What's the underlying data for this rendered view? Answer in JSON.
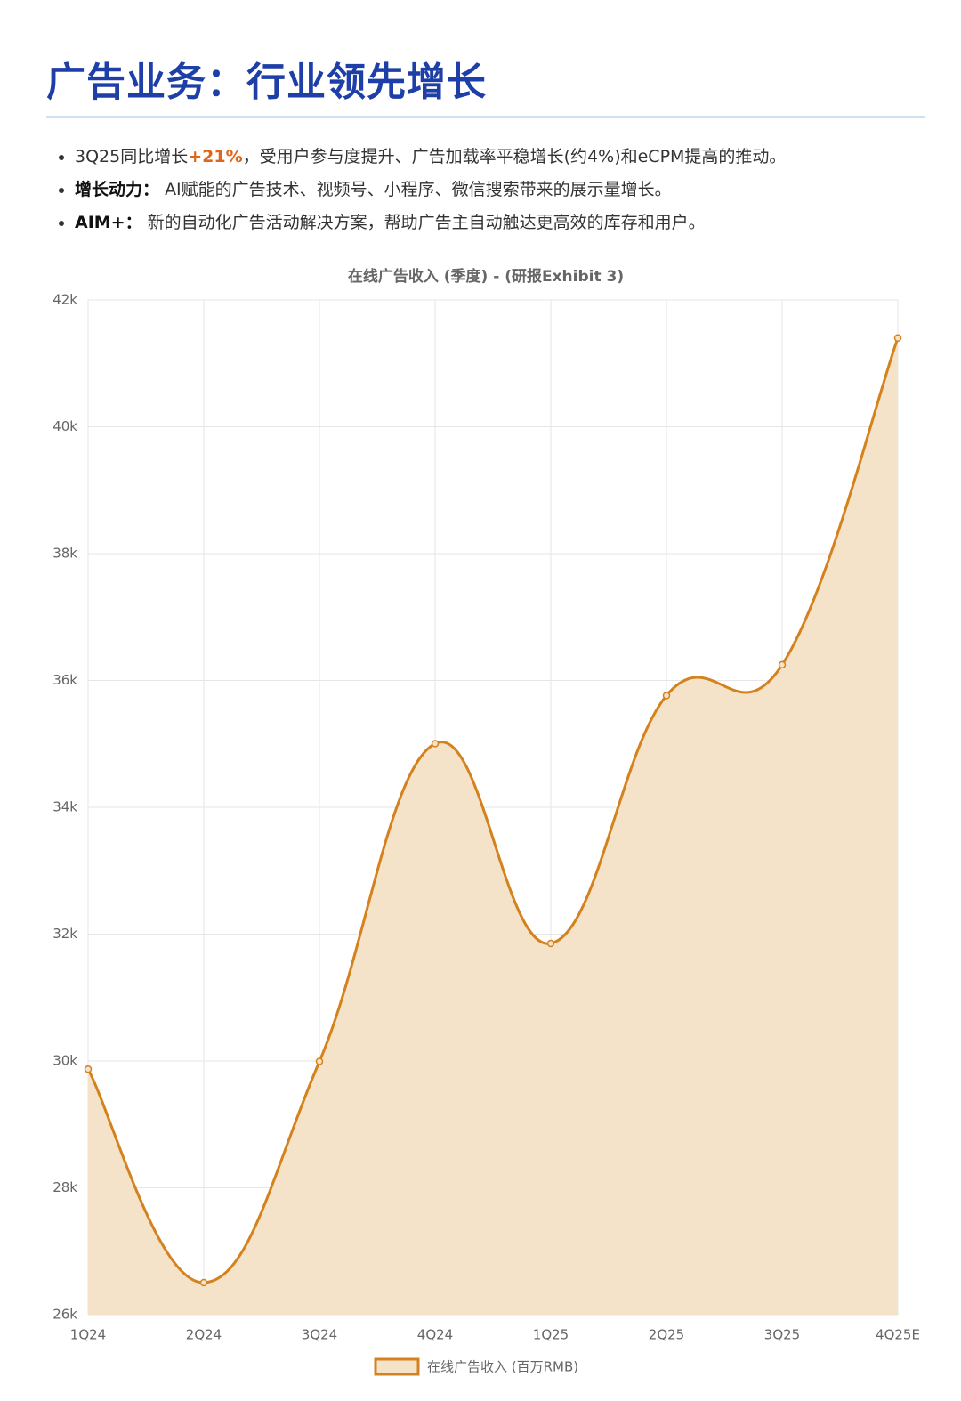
{
  "header": {
    "title": "广告业务：行业领先增长"
  },
  "bullets": [
    {
      "parts": [
        "3Q25同比增长",
        "+21%",
        "，受用户参与度提升、广告加载率平稳增长(约4%)和eCPM提高的推动。"
      ]
    },
    {
      "label": "增长动力：",
      "text": "AI赋能的广告技术、视频号、小程序、微信搜索带来的展示量增长。"
    },
    {
      "label": "AIM+：",
      "text": "新的自动化广告活动解决方案，帮助广告主自动触达更高效的库存和用户。"
    }
  ],
  "chart_data": {
    "type": "area",
    "title": "在线广告收入 (季度) - (研报Exhibit 3)",
    "categories": [
      "1Q24",
      "2Q24",
      "3Q24",
      "4Q24",
      "1Q25",
      "2Q25",
      "3Q25",
      "4Q25E"
    ],
    "series": [
      {
        "name": "在线广告收入 (百万RMB)",
        "color": "#d4821e",
        "fill": "#f5e3c9",
        "values": [
          29871,
          26506,
          29993,
          35004,
          31853,
          35762,
          36247,
          41400
        ]
      }
    ],
    "ylim": [
      26000,
      42000
    ],
    "yticks": [
      {
        "value": 26000,
        "label": "26k"
      },
      {
        "value": 28000,
        "label": "28k"
      },
      {
        "value": 30000,
        "label": "30k"
      },
      {
        "value": 32000,
        "label": "32k"
      },
      {
        "value": 34000,
        "label": "34k"
      },
      {
        "value": 36000,
        "label": "36k"
      },
      {
        "value": 38000,
        "label": "38k"
      },
      {
        "value": 40000,
        "label": "40k"
      },
      {
        "value": 42000,
        "label": "42k"
      }
    ],
    "grid": true,
    "legend": "bottom"
  }
}
